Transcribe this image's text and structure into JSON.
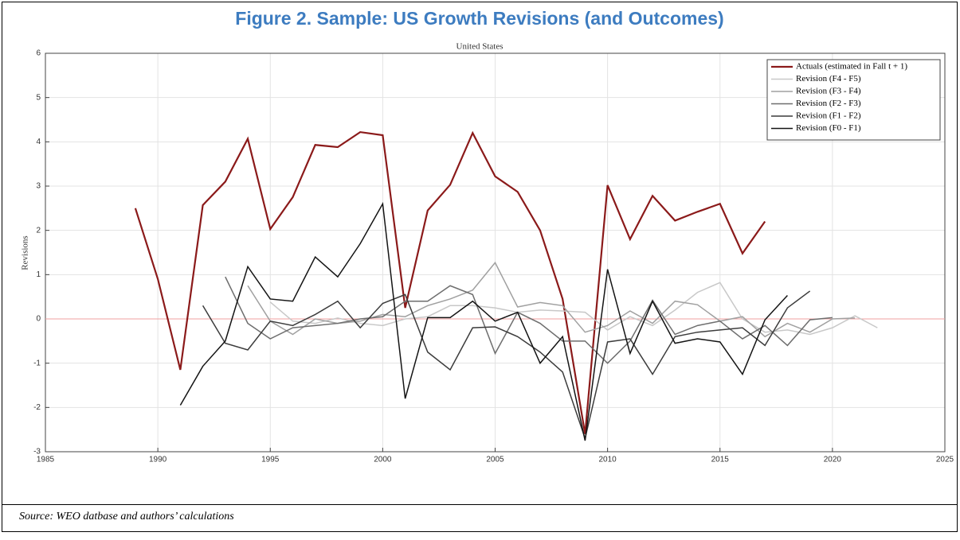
{
  "header": {
    "title": "Figure 2. Sample: US Growth Revisions (and Outcomes)"
  },
  "source": "Source: WEO datbase and authors’ calculations",
  "chart_data": {
    "type": "line",
    "title": "United States",
    "y_label": "Revisions",
    "x": [
      1989,
      1990,
      1991,
      1992,
      1993,
      1994,
      1995,
      1996,
      1997,
      1998,
      1999,
      2000,
      2001,
      2002,
      2003,
      2004,
      2005,
      2006,
      2007,
      2008,
      2009,
      2010,
      2011,
      2012,
      2013,
      2014,
      2015,
      2016,
      2017,
      2018,
      2019,
      2020,
      2021,
      2022
    ],
    "series": [
      {
        "name": "Actuals (estimated in Fall t + 1)",
        "color": "#8b1a1a",
        "values": [
          2.5,
          0.9,
          -1.15,
          2.57,
          3.1,
          4.07,
          2.03,
          2.75,
          3.93,
          3.88,
          4.22,
          4.15,
          0.25,
          2.45,
          3.03,
          4.2,
          3.22,
          2.87,
          2.0,
          0.45,
          -2.6,
          3.02,
          1.8,
          2.78,
          2.22,
          2.42,
          2.6,
          1.48,
          2.2,
          null,
          null,
          null,
          null,
          null
        ]
      },
      {
        "name": "Revision (F4 - F5)",
        "color": "#c8c8c8",
        "values": [
          null,
          null,
          null,
          null,
          null,
          null,
          0.38,
          -0.05,
          -0.1,
          0.02,
          -0.1,
          -0.15,
          0.0,
          0.05,
          0.3,
          0.3,
          0.25,
          0.15,
          0.2,
          0.18,
          0.15,
          -0.25,
          0.05,
          -0.15,
          0.2,
          0.6,
          0.82,
          0.0,
          -0.3,
          -0.25,
          -0.35,
          -0.2,
          0.07,
          -0.2
        ]
      },
      {
        "name": "Revision (F3 - F4)",
        "color": "#a0a0a0",
        "values": [
          null,
          null,
          null,
          null,
          null,
          0.75,
          -0.05,
          -0.35,
          0.0,
          -0.1,
          -0.05,
          0.1,
          0.05,
          0.3,
          0.45,
          0.65,
          1.27,
          0.27,
          0.37,
          0.3,
          -0.3,
          -0.15,
          0.18,
          -0.1,
          0.4,
          0.32,
          -0.05,
          0.05,
          -0.4,
          -0.1,
          -0.3,
          0.0,
          0.02,
          null
        ]
      },
      {
        "name": "Revision (F2 - F3)",
        "color": "#6e6e6e",
        "values": [
          null,
          null,
          null,
          null,
          0.95,
          -0.1,
          -0.45,
          -0.2,
          -0.15,
          -0.1,
          0.0,
          0.05,
          0.4,
          0.4,
          0.75,
          0.55,
          -0.78,
          0.15,
          -0.1,
          -0.5,
          -0.5,
          -1.0,
          -0.5,
          0.42,
          -0.35,
          -0.15,
          -0.05,
          -0.45,
          -0.15,
          -0.6,
          -0.02,
          0.03,
          null,
          null
        ]
      },
      {
        "name": "Revision (F1 - F2)",
        "color": "#3c3c3c",
        "values": [
          null,
          null,
          null,
          0.3,
          -0.55,
          -0.7,
          -0.05,
          -0.15,
          0.1,
          0.4,
          -0.2,
          0.35,
          0.55,
          -0.75,
          -1.15,
          -0.2,
          -0.18,
          -0.4,
          -0.75,
          -1.2,
          -2.7,
          -0.52,
          -0.45,
          -1.25,
          -0.4,
          -0.3,
          -0.25,
          -0.2,
          -0.6,
          0.25,
          0.63,
          null,
          null,
          null
        ]
      },
      {
        "name": "Revision (F0 - F1)",
        "color": "#141414",
        "values": [
          null,
          null,
          -1.95,
          -1.07,
          -0.5,
          1.18,
          0.45,
          0.4,
          1.4,
          0.95,
          1.7,
          2.6,
          -1.8,
          0.03,
          0.03,
          0.4,
          -0.05,
          0.15,
          -1.0,
          -0.4,
          -2.75,
          1.12,
          -0.78,
          0.4,
          -0.55,
          -0.45,
          -0.52,
          -1.25,
          -0.02,
          0.53,
          null,
          null,
          null,
          null
        ]
      }
    ],
    "xlim": [
      1985,
      2025
    ],
    "xticks": [
      1985,
      1990,
      1995,
      2000,
      2005,
      2010,
      2015,
      2020,
      2025
    ],
    "ylim": [
      -3,
      6
    ],
    "yticks": [
      -3,
      -2,
      -1,
      0,
      1,
      2,
      3,
      4,
      5,
      6
    ],
    "reference_line": {
      "y": 0,
      "color": "#f0a0a0"
    },
    "grid": true,
    "legend": "upper right"
  }
}
